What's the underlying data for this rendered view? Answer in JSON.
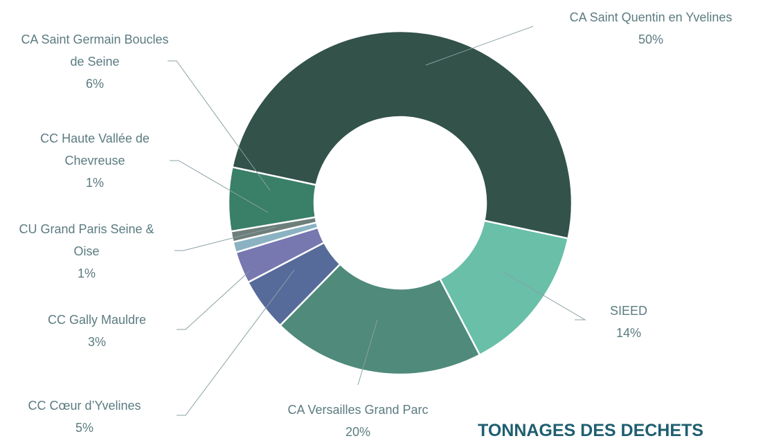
{
  "chart_data": {
    "type": "donut",
    "title": "TONNAGES DES DECHETS",
    "categories": [
      "CA Saint Quentin en Yvelines",
      "SIEED",
      "CA Versailles Grand Parc",
      "CC Cœur d’Yvelines",
      "CC Gally Mauldre",
      "CU Grand Paris Seine & Oise",
      "CC Haute Vallée de Chevreuse",
      "CA Saint Germain Boucles de Seine"
    ],
    "values": [
      50,
      14,
      20,
      5,
      3,
      1,
      1,
      6
    ],
    "value_labels": [
      "50%",
      "14%",
      "20%",
      "5%",
      "3%",
      "1%",
      "1%",
      "6%"
    ],
    "colors": [
      "#32524a",
      "#69bfa8",
      "#4f8a7a",
      "#566b9a",
      "#7778b0",
      "#8ab2c2",
      "#6e7f7b",
      "#3a7f68"
    ]
  }
}
